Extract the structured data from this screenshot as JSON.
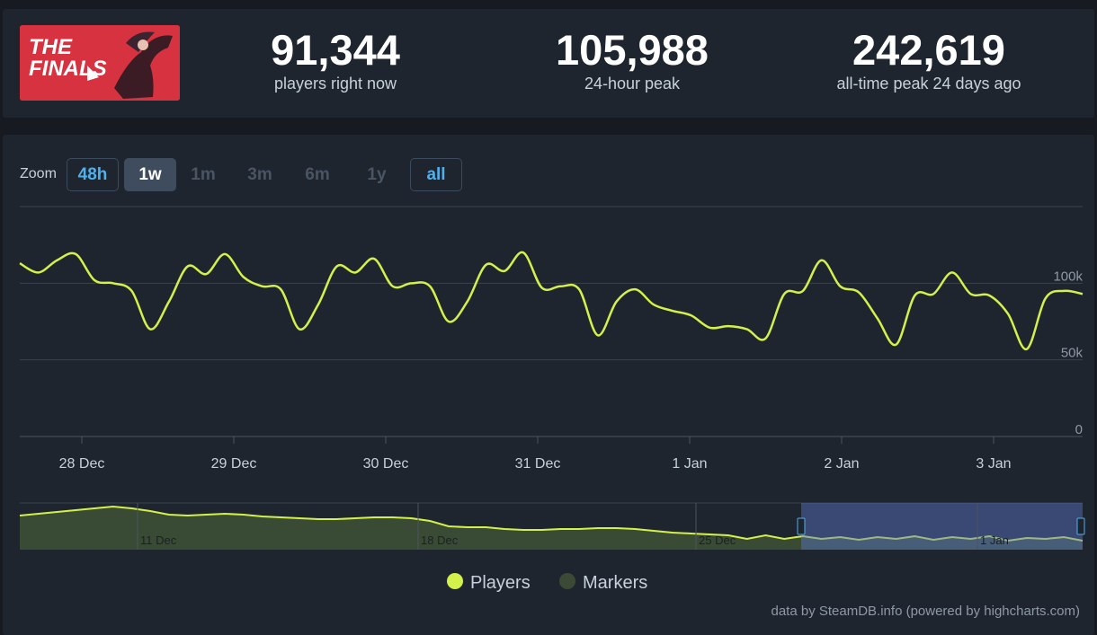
{
  "header": {
    "logo_text_line1": "THE",
    "logo_text_line2": "FINALS",
    "stats": [
      {
        "value": "91,344",
        "label": "players right now"
      },
      {
        "value": "105,988",
        "label": "24-hour peak"
      },
      {
        "value": "242,619",
        "label": "all-time peak 24 days ago"
      }
    ]
  },
  "zoom": {
    "label": "Zoom",
    "buttons": [
      {
        "label": "48h",
        "state": "outlined"
      },
      {
        "label": "1w",
        "state": "active"
      },
      {
        "label": "1m",
        "state": "disabled"
      },
      {
        "label": "3m",
        "state": "disabled"
      },
      {
        "label": "6m",
        "state": "disabled"
      },
      {
        "label": "1y",
        "state": "disabled"
      },
      {
        "label": "all",
        "state": "outlined"
      }
    ]
  },
  "chart_data": {
    "type": "line",
    "series": [
      {
        "name": "Players",
        "color": "#d4f04a",
        "x": [
          "27 Dec 12:00",
          "27 Dec 15:00",
          "27 Dec 18:00",
          "27 Dec 21:00",
          "28 Dec 00:00",
          "28 Dec 03:00",
          "28 Dec 06:00",
          "28 Dec 09:00",
          "28 Dec 12:00",
          "28 Dec 15:00",
          "28 Dec 18:00",
          "28 Dec 21:00",
          "29 Dec 00:00",
          "29 Dec 03:00",
          "29 Dec 06:00",
          "29 Dec 09:00",
          "29 Dec 12:00",
          "29 Dec 15:00",
          "29 Dec 18:00",
          "29 Dec 21:00",
          "30 Dec 00:00",
          "30 Dec 03:00",
          "30 Dec 06:00",
          "30 Dec 09:00",
          "30 Dec 12:00",
          "30 Dec 15:00",
          "30 Dec 18:00",
          "30 Dec 21:00",
          "31 Dec 00:00",
          "31 Dec 03:00",
          "31 Dec 06:00",
          "31 Dec 09:00",
          "31 Dec 12:00",
          "31 Dec 15:00",
          "31 Dec 18:00",
          "31 Dec 21:00",
          "1 Jan 00:00",
          "1 Jan 03:00",
          "1 Jan 06:00",
          "1 Jan 09:00",
          "1 Jan 12:00",
          "1 Jan 15:00",
          "1 Jan 18:00",
          "1 Jan 21:00",
          "2 Jan 00:00",
          "2 Jan 03:00",
          "2 Jan 06:00",
          "2 Jan 09:00",
          "2 Jan 12:00",
          "2 Jan 15:00",
          "2 Jan 18:00",
          "2 Jan 21:00",
          "3 Jan 00:00",
          "3 Jan 03:00",
          "3 Jan 06:00",
          "3 Jan 09:00",
          "3 Jan 12:00",
          "3 Jan 15:00"
        ],
        "values": [
          113000,
          107000,
          115000,
          119000,
          102000,
          100000,
          95000,
          70000,
          88000,
          111000,
          106000,
          119000,
          104000,
          98000,
          96000,
          70000,
          86000,
          111000,
          107000,
          116000,
          98000,
          100000,
          98000,
          75000,
          88000,
          112000,
          108000,
          120000,
          97000,
          98000,
          96000,
          66000,
          88000,
          96000,
          86000,
          82000,
          79000,
          71000,
          72000,
          70000,
          64000,
          93000,
          95000,
          115000,
          98000,
          94000,
          77000,
          60000,
          92000,
          93000,
          107000,
          93000,
          92000,
          80000,
          57000,
          90000,
          95000,
          93000
        ]
      },
      {
        "name": "Markers",
        "color": "#3a4b35",
        "x": [],
        "values": []
      }
    ],
    "xticks": [
      "28 Dec",
      "29 Dec",
      "30 Dec",
      "31 Dec",
      "1 Jan",
      "2 Jan",
      "3 Jan"
    ],
    "yticks": [
      "0",
      "50k",
      "100k"
    ],
    "ylim": [
      0,
      150000
    ],
    "grid": true,
    "legend": "bottom-center",
    "navigator": {
      "labels": [
        "11 Dec",
        "18 Dec",
        "25 Dec",
        "1 Jan"
      ]
    }
  },
  "credit": "data by SteamDB.info (powered by highcharts.com)"
}
